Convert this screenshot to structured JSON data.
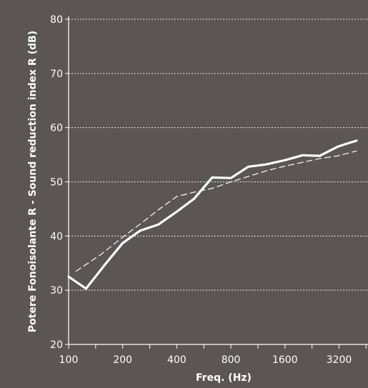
{
  "chart_data": {
    "type": "line",
    "xlabel": "Freq. (Hz)",
    "ylabel": "Potere Fonoisolante R - Sound reduction index R (dB)",
    "x_scale": "log",
    "xlim": [
      100,
      4000
    ],
    "ylim": [
      20,
      80
    ],
    "x_ticks": [
      100,
      200,
      400,
      800,
      1600,
      3200
    ],
    "x_tick_labels": [
      "100",
      "200",
      "400",
      "800",
      "1600",
      "3200"
    ],
    "y_ticks": [
      20,
      30,
      40,
      50,
      60,
      70,
      80
    ],
    "y_tick_labels": [
      "20",
      "30",
      "40",
      "50",
      "60",
      "70",
      "80"
    ],
    "grid": "horizontal-dashed",
    "series": [
      {
        "style": "solid",
        "color": "#ffffff",
        "x": [
          100,
          125,
          160,
          200,
          250,
          315,
          400,
          500,
          630,
          800,
          1000,
          1250,
          1600,
          2000,
          2500,
          3150,
          3500,
          4000
        ],
        "y": [
          32.5,
          30.3,
          34.8,
          38.7,
          41.0,
          42.1,
          44.5,
          46.9,
          50.8,
          50.7,
          52.8,
          53.2,
          54.0,
          54.9,
          54.8,
          56.5,
          57.0,
          57.6
        ]
      },
      {
        "style": "dashed",
        "color": "#ffffff",
        "x": [
          110,
          150,
          200,
          250,
          315,
          400,
          500,
          630,
          800,
          1000,
          1250,
          1600,
          2000,
          2500,
          3150,
          4000
        ],
        "y": [
          33.5,
          36.5,
          39.8,
          42.2,
          44.8,
          47.3,
          48.1,
          48.8,
          50.0,
          51.0,
          52.0,
          52.9,
          53.6,
          54.3,
          54.8,
          55.7
        ]
      }
    ]
  }
}
